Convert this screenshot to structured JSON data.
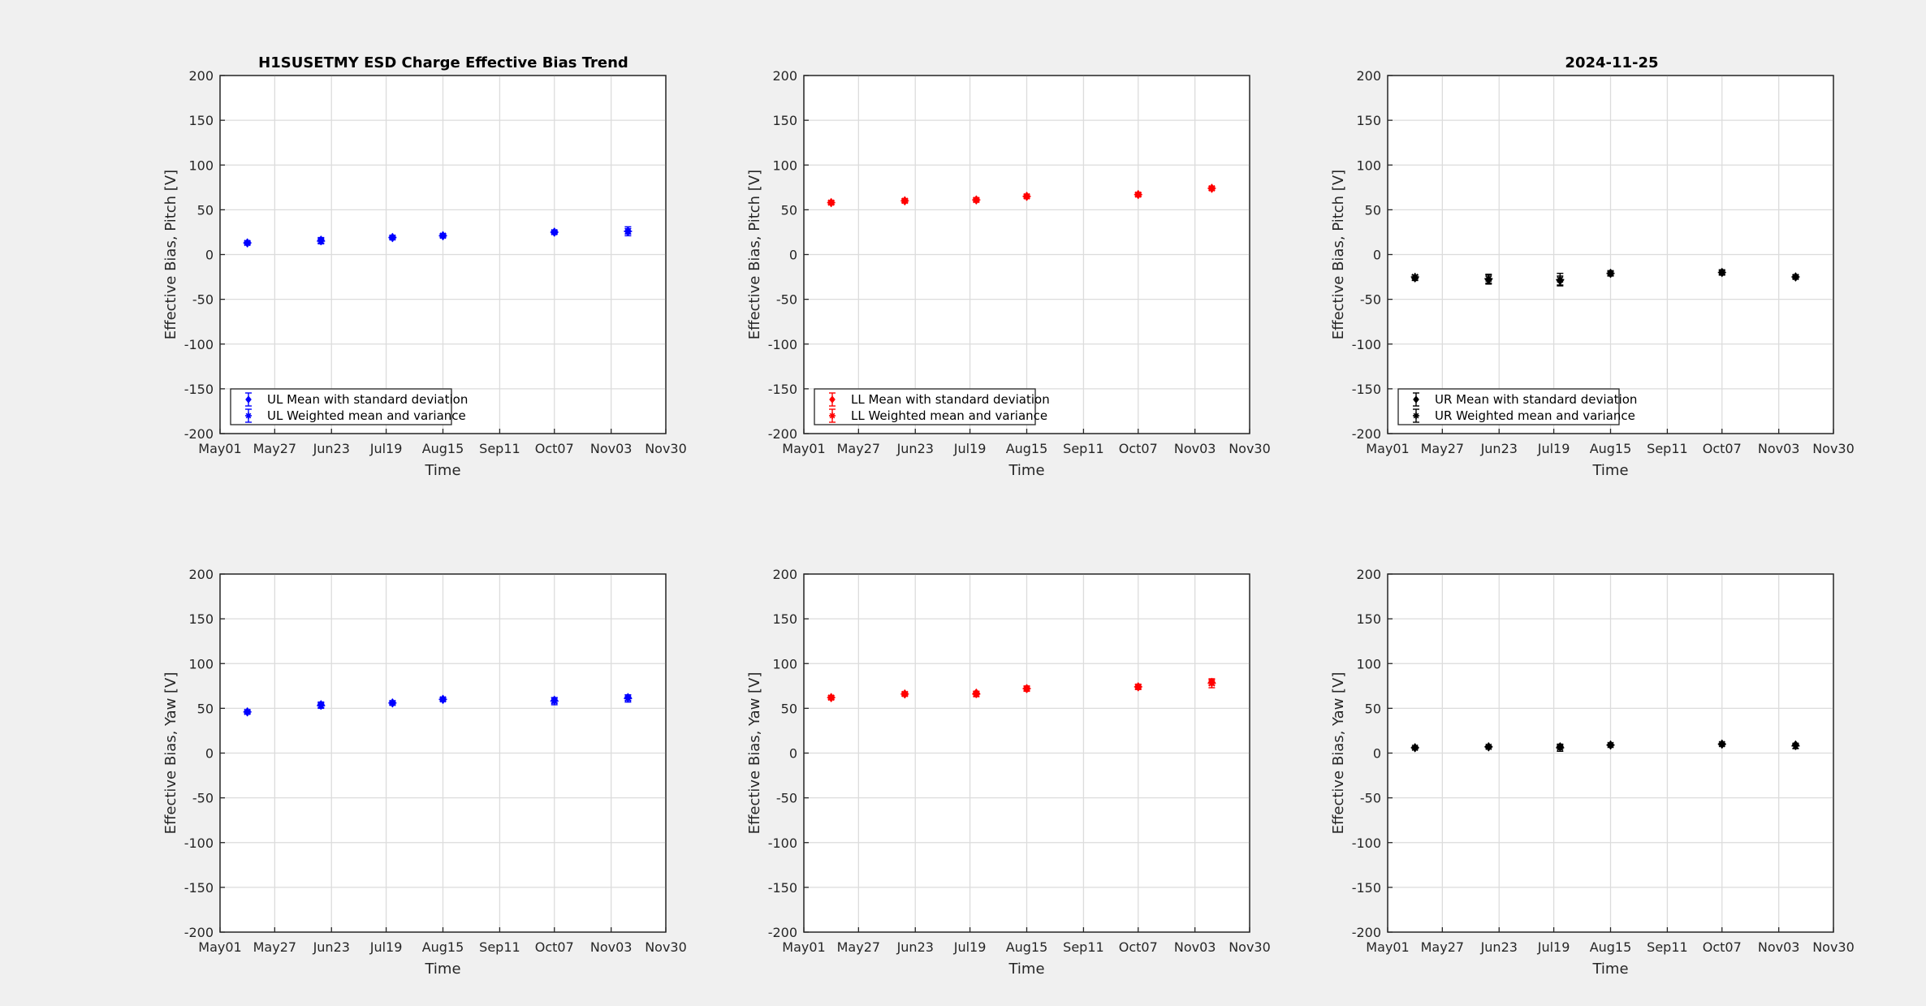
{
  "figure": {
    "title_left": "H1SUSETMY ESD Charge Effective Bias Trend",
    "title_right": "2024-11-25"
  },
  "axes_common": {
    "x_ticks": [
      "May01",
      "May27",
      "Jun23",
      "Jul19",
      "Aug15",
      "Sep11",
      "Oct07",
      "Nov03",
      "Nov30"
    ],
    "x_range_days": [
      0,
      212
    ],
    "y_ticks": [
      200,
      150,
      100,
      50,
      0,
      -50,
      -100,
      -150,
      -200
    ],
    "ylim": [
      -200,
      200
    ],
    "xlabel": "Time",
    "grid": true
  },
  "chart_data": [
    {
      "type": "scatter",
      "panel": "upper-left",
      "title": "H1SUSETMY ESD Charge Effective Bias Trend",
      "xlabel": "Time",
      "ylabel": "Effective Bias, Pitch [V]",
      "ylim": [
        -200,
        200
      ],
      "color": "#0000ff",
      "x": [
        "May14",
        "Jun18",
        "Jul22",
        "Aug15",
        "Oct07",
        "Nov11"
      ],
      "series": [
        {
          "name": "UL Mean with standard deviation",
          "marker": "diamond",
          "values": [
            13,
            16,
            19,
            21,
            25,
            26
          ],
          "err": [
            2,
            3,
            2,
            2,
            2,
            3
          ]
        },
        {
          "name": "UL Weighted mean and variance",
          "marker": "star",
          "values": [
            13,
            15,
            19,
            21,
            25,
            26
          ],
          "err": [
            1,
            3,
            1,
            1,
            1,
            5
          ]
        }
      ],
      "legend": "bottom-left"
    },
    {
      "type": "scatter",
      "panel": "upper-middle",
      "xlabel": "Time",
      "ylabel": "Effective Bias, Pitch [V]",
      "ylim": [
        -200,
        200
      ],
      "color": "#ff0000",
      "x": [
        "May14",
        "Jun18",
        "Jul22",
        "Aug15",
        "Oct07",
        "Nov11"
      ],
      "series": [
        {
          "name": "LL Mean with standard deviation",
          "marker": "diamond",
          "values": [
            58,
            60,
            61,
            65,
            67,
            74
          ],
          "err": [
            2,
            2,
            2,
            2,
            2,
            2
          ]
        },
        {
          "name": "LL Weighted mean and variance",
          "marker": "star",
          "values": [
            58,
            60,
            61,
            65,
            67,
            74
          ],
          "err": [
            2,
            2,
            2,
            2,
            2,
            2
          ]
        }
      ],
      "legend": "bottom-left"
    },
    {
      "type": "scatter",
      "panel": "upper-right",
      "title": "2024-11-25",
      "xlabel": "Time",
      "ylabel": "Effective Bias, Pitch [V]",
      "ylim": [
        -200,
        200
      ],
      "color": "#000000",
      "x": [
        "May14",
        "Jun18",
        "Jul22",
        "Aug15",
        "Oct07",
        "Nov11"
      ],
      "series": [
        {
          "name": "UR Mean with standard deviation",
          "marker": "diamond",
          "values": [
            -26,
            -28,
            -29,
            -21,
            -20,
            -25
          ],
          "err": [
            3,
            5,
            5,
            3,
            3,
            2
          ]
        },
        {
          "name": "UR Weighted mean and variance",
          "marker": "star",
          "values": [
            -25,
            -27,
            -28,
            -21,
            -20,
            -25
          ],
          "err": [
            2,
            5,
            7,
            2,
            2,
            2
          ]
        }
      ],
      "legend": "bottom-left"
    },
    {
      "type": "scatter",
      "panel": "lower-left",
      "xlabel": "Time",
      "ylabel": "Effective Bias, Yaw [V]",
      "ylim": [
        -200,
        200
      ],
      "color": "#0000ff",
      "x": [
        "May14",
        "Jun18",
        "Jul22",
        "Aug15",
        "Oct07",
        "Nov11"
      ],
      "series": [
        {
          "name": "UL Mean with standard deviation",
          "marker": "diamond",
          "values": [
            46,
            54,
            56,
            60,
            59,
            62
          ],
          "err": [
            2,
            3,
            2,
            2,
            3,
            3
          ]
        },
        {
          "name": "UL Weighted mean and variance",
          "marker": "star",
          "values": [
            46,
            53,
            56,
            60,
            58,
            61
          ],
          "err": [
            2,
            3,
            2,
            2,
            4,
            4
          ]
        }
      ]
    },
    {
      "type": "scatter",
      "panel": "lower-middle",
      "xlabel": "Time",
      "ylabel": "Effective Bias, Yaw [V]",
      "ylim": [
        -200,
        200
      ],
      "color": "#ff0000",
      "x": [
        "May14",
        "Jun18",
        "Jul22",
        "Aug15",
        "Oct07",
        "Nov11"
      ],
      "series": [
        {
          "name": "LL Mean with standard deviation",
          "marker": "diamond",
          "values": [
            62,
            66,
            67,
            72,
            74,
            79
          ],
          "err": [
            2,
            2,
            2,
            2,
            2,
            3
          ]
        },
        {
          "name": "LL Weighted mean and variance",
          "marker": "star",
          "values": [
            62,
            66,
            66,
            72,
            74,
            78
          ],
          "err": [
            2,
            2,
            3,
            3,
            3,
            5
          ]
        }
      ]
    },
    {
      "type": "scatter",
      "panel": "lower-right",
      "xlabel": "Time",
      "ylabel": "Effective Bias, Yaw [V]",
      "ylim": [
        -200,
        200
      ],
      "color": "#000000",
      "x": [
        "May14",
        "Jun18",
        "Jul22",
        "Aug15",
        "Oct07",
        "Nov11"
      ],
      "series": [
        {
          "name": "UR Mean with standard deviation",
          "marker": "diamond",
          "values": [
            6,
            7,
            7,
            9,
            10,
            9
          ],
          "err": [
            1,
            1,
            2,
            1,
            1,
            1
          ]
        },
        {
          "name": "UR Weighted mean and variance",
          "marker": "star",
          "values": [
            6,
            7,
            6,
            9,
            10,
            8
          ],
          "err": [
            1,
            1,
            4,
            1,
            1,
            3
          ]
        }
      ]
    }
  ]
}
